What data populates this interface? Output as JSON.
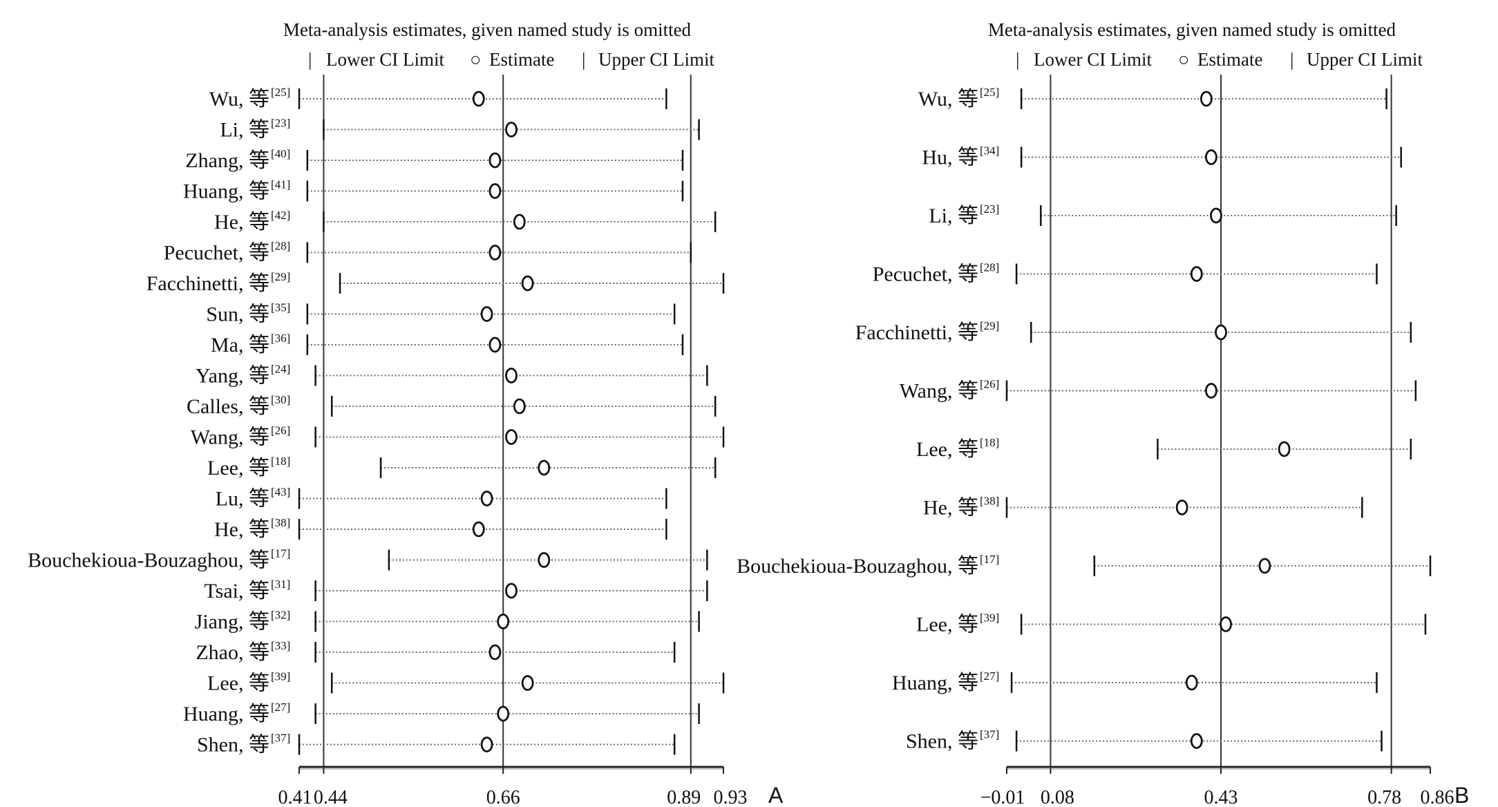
{
  "chart_data": [
    {
      "type": "forest",
      "panel_label": "A",
      "title": "Meta-analysis estimates, given named study is omitted",
      "legend": {
        "lower_marker": "|",
        "lower_label": "Lower CI Limit",
        "estimate_marker": "○",
        "estimate_label": "Estimate",
        "upper_marker": "|",
        "upper_label": "Upper CI Limit"
      },
      "xlim": [
        0.41,
        0.93
      ],
      "xticks": [
        {
          "value": 0.41,
          "label": "0.41"
        },
        {
          "value": 0.44,
          "label": "0.44"
        },
        {
          "value": 0.66,
          "label": "0.66"
        },
        {
          "value": 0.89,
          "label": "0.89"
        },
        {
          "value": 0.93,
          "label": "0.93"
        }
      ],
      "reference_lines": [
        0.44,
        0.66,
        0.89
      ],
      "studies": [
        {
          "label": "Wu, 等",
          "ref": "[25]",
          "lower": 0.41,
          "estimate": 0.63,
          "upper": 0.86
        },
        {
          "label": "Li, 等",
          "ref": "[23]",
          "lower": 0.44,
          "estimate": 0.67,
          "upper": 0.9
        },
        {
          "label": "Zhang, 等",
          "ref": "[40]",
          "lower": 0.42,
          "estimate": 0.65,
          "upper": 0.88
        },
        {
          "label": "Huang, 等",
          "ref": "[41]",
          "lower": 0.42,
          "estimate": 0.65,
          "upper": 0.88
        },
        {
          "label": "He, 等",
          "ref": "[42]",
          "lower": 0.44,
          "estimate": 0.68,
          "upper": 0.92
        },
        {
          "label": "Pecuchet, 等",
          "ref": "[28]",
          "lower": 0.42,
          "estimate": 0.65,
          "upper": 0.89
        },
        {
          "label": "Facchinetti, 等",
          "ref": "[29]",
          "lower": 0.46,
          "estimate": 0.69,
          "upper": 0.93
        },
        {
          "label": "Sun, 等",
          "ref": "[35]",
          "lower": 0.42,
          "estimate": 0.64,
          "upper": 0.87
        },
        {
          "label": "Ma, 等",
          "ref": "[36]",
          "lower": 0.42,
          "estimate": 0.65,
          "upper": 0.88
        },
        {
          "label": "Yang, 等",
          "ref": "[24]",
          "lower": 0.43,
          "estimate": 0.67,
          "upper": 0.91
        },
        {
          "label": "Calles, 等",
          "ref": "[30]",
          "lower": 0.45,
          "estimate": 0.68,
          "upper": 0.92
        },
        {
          "label": "Wang, 等",
          "ref": "[26]",
          "lower": 0.43,
          "estimate": 0.67,
          "upper": 0.93
        },
        {
          "label": "Lee, 等",
          "ref": "[18]",
          "lower": 0.51,
          "estimate": 0.71,
          "upper": 0.92
        },
        {
          "label": "Lu, 等",
          "ref": "[43]",
          "lower": 0.41,
          "estimate": 0.64,
          "upper": 0.86
        },
        {
          "label": "He, 等",
          "ref": "[38]",
          "lower": 0.41,
          "estimate": 0.63,
          "upper": 0.86
        },
        {
          "label": "Bouchekioua-Bouzaghou, 等",
          "ref": "[17]",
          "lower": 0.52,
          "estimate": 0.71,
          "upper": 0.91
        },
        {
          "label": "Tsai, 等",
          "ref": "[31]",
          "lower": 0.43,
          "estimate": 0.67,
          "upper": 0.91
        },
        {
          "label": "Jiang, 等",
          "ref": "[32]",
          "lower": 0.43,
          "estimate": 0.66,
          "upper": 0.9
        },
        {
          "label": "Zhao, 等",
          "ref": "[33]",
          "lower": 0.43,
          "estimate": 0.65,
          "upper": 0.87
        },
        {
          "label": "Lee, 等",
          "ref": "[39]",
          "lower": 0.45,
          "estimate": 0.69,
          "upper": 0.93
        },
        {
          "label": "Huang, 等",
          "ref": "[27]",
          "lower": 0.43,
          "estimate": 0.66,
          "upper": 0.9
        },
        {
          "label": "Shen, 等",
          "ref": "[37]",
          "lower": 0.41,
          "estimate": 0.64,
          "upper": 0.87
        }
      ]
    },
    {
      "type": "forest",
      "panel_label": "B",
      "title": "Meta-analysis estimates, given named study is omitted",
      "legend": {
        "lower_marker": "|",
        "lower_label": "Lower CI Limit",
        "estimate_marker": "○",
        "estimate_label": "Estimate",
        "upper_marker": "|",
        "upper_label": "Upper CI Limit"
      },
      "xlim": [
        -0.01,
        0.86
      ],
      "xticks": [
        {
          "value": -0.01,
          "label": "−0.01"
        },
        {
          "value": 0.08,
          "label": "0.08"
        },
        {
          "value": 0.43,
          "label": "0.43"
        },
        {
          "value": 0.78,
          "label": "0.78"
        },
        {
          "value": 0.86,
          "label": "0.86"
        }
      ],
      "reference_lines": [
        0.08,
        0.43,
        0.78
      ],
      "studies": [
        {
          "label": "Wu, 等",
          "ref": "[25]",
          "lower": 0.02,
          "estimate": 0.4,
          "upper": 0.77
        },
        {
          "label": "Hu, 等",
          "ref": "[34]",
          "lower": 0.02,
          "estimate": 0.41,
          "upper": 0.8
        },
        {
          "label": "Li, 等",
          "ref": "[23]",
          "lower": 0.06,
          "estimate": 0.42,
          "upper": 0.79
        },
        {
          "label": "Pecuchet, 等",
          "ref": "[28]",
          "lower": 0.01,
          "estimate": 0.38,
          "upper": 0.75
        },
        {
          "label": "Facchinetti, 等",
          "ref": "[29]",
          "lower": 0.04,
          "estimate": 0.43,
          "upper": 0.82
        },
        {
          "label": "Wang, 等",
          "ref": "[26]",
          "lower": -0.01,
          "estimate": 0.41,
          "upper": 0.83
        },
        {
          "label": "Lee, 等",
          "ref": "[18]",
          "lower": 0.3,
          "estimate": 0.56,
          "upper": 0.82
        },
        {
          "label": "He, 等",
          "ref": "[38]",
          "lower": -0.01,
          "estimate": 0.35,
          "upper": 0.72
        },
        {
          "label": "Bouchekioua-Bouzaghou, 等",
          "ref": "[17]",
          "lower": 0.17,
          "estimate": 0.52,
          "upper": 0.86
        },
        {
          "label": "Lee, 等",
          "ref": "[39]",
          "lower": 0.02,
          "estimate": 0.44,
          "upper": 0.85
        },
        {
          "label": "Huang, 等",
          "ref": "[27]",
          "lower": 0.0,
          "estimate": 0.37,
          "upper": 0.75
        },
        {
          "label": "Shen, 等",
          "ref": "[37]",
          "lower": 0.01,
          "estimate": 0.38,
          "upper": 0.76
        }
      ]
    }
  ]
}
